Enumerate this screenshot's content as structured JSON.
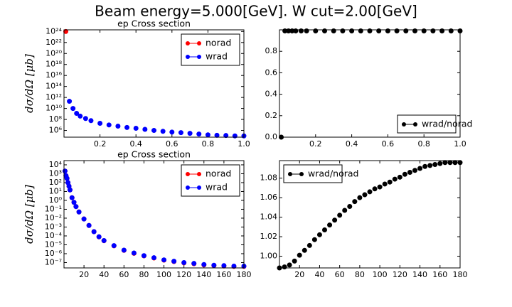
{
  "title": "Beam energy=5.000[GeV]. W cut=2.00[GeV]",
  "chart_data": [
    {
      "type": "scatter",
      "title": "ep Cross section",
      "ylabel": "dσ/dΩ [μb]",
      "log_y": true,
      "legend": "upper right",
      "xlim": [
        0,
        1
      ],
      "ylim": [
        60000,
        2e+24
      ],
      "xticks": [
        0.2,
        0.4,
        0.6,
        0.8,
        {
          "value": 1,
          "label": "1.0"
        }
      ],
      "yticks": [
        {
          "value": 1000000.0,
          "label": "10⁶"
        },
        {
          "value": 100000000.0,
          "label": "10⁸"
        },
        {
          "value": 10000000000.0,
          "label": "10¹⁰"
        },
        {
          "value": 1000000000000.0,
          "label": "10¹²"
        },
        {
          "value": 100000000000000.0,
          "label": "10¹⁴"
        },
        {
          "value": 1e+16,
          "label": "10¹⁶"
        },
        {
          "value": 1e+18,
          "label": "10¹⁸"
        },
        {
          "value": 1e+20,
          "label": "10²⁰"
        },
        {
          "value": 1e+22,
          "label": "10²²"
        },
        {
          "value": 1e+24,
          "label": "10²⁴"
        }
      ],
      "series": [
        {
          "name": "norad",
          "color": "#ff0000",
          "x": [
            0.01
          ],
          "values": [
            1e+24
          ]
        },
        {
          "name": "wrad",
          "color": "#0000ff",
          "x": [
            0.03,
            0.05,
            0.07,
            0.09,
            0.12,
            0.15,
            0.2,
            0.25,
            0.3,
            0.35,
            0.4,
            0.45,
            0.5,
            0.55,
            0.6,
            0.65,
            0.7,
            0.75,
            0.8,
            0.85,
            0.9,
            0.95,
            1.0
          ],
          "values": [
            200000000000.0,
            10000000000.0,
            1300000000.0,
            400000000.0,
            150000000.0,
            60000000.0,
            20000000.0,
            10000000.0,
            6000000.0,
            3500000.0,
            2500000.0,
            1600000.0,
            1000000.0,
            700000.0,
            500000.0,
            400000.0,
            300000.0,
            220000.0,
            160000.0,
            130000.0,
            120000.0,
            100000.0,
            100000.0
          ]
        }
      ]
    },
    {
      "type": "scatter",
      "legend": "lower right",
      "xlim": [
        0,
        1
      ],
      "ylim": [
        0,
        1.0
      ],
      "xticks": [
        0.2,
        0.4,
        0.6,
        0.8,
        {
          "value": 1,
          "label": "1.0"
        }
      ],
      "yticks": [
        {
          "value": 0,
          "label": "0.0"
        },
        0.2,
        0.4,
        0.6,
        0.8
      ],
      "series": [
        {
          "name": "wrad/norad",
          "color": "#000000",
          "x": [
            0.01,
            0.03,
            0.05,
            0.07,
            0.09,
            0.12,
            0.15,
            0.2,
            0.25,
            0.3,
            0.35,
            0.4,
            0.45,
            0.5,
            0.55,
            0.6,
            0.65,
            0.7,
            0.75,
            0.8,
            0.85,
            0.9,
            0.95,
            1.0
          ],
          "values": [
            0,
            0.99,
            0.99,
            0.99,
            0.99,
            0.99,
            0.99,
            0.99,
            0.99,
            0.99,
            0.99,
            0.99,
            0.99,
            0.99,
            0.99,
            0.99,
            0.99,
            0.99,
            0.99,
            0.99,
            0.99,
            0.99,
            0.99,
            0.99
          ]
        }
      ]
    },
    {
      "type": "scatter",
      "title": "ep Cross section",
      "ylabel": "dσ/dΩ [μb]",
      "log_y": true,
      "legend": "upper right",
      "xlim": [
        0,
        180
      ],
      "ylim": [
        2.5e-08,
        30000
      ],
      "xticks": [
        20,
        40,
        60,
        80,
        100,
        120,
        140,
        160,
        180
      ],
      "yticks": [
        {
          "value": 1e-07,
          "label": "10⁻⁷"
        },
        {
          "value": 1e-06,
          "label": "10⁻⁶"
        },
        {
          "value": 1e-05,
          "label": "10⁻⁵"
        },
        {
          "value": 0.0001,
          "label": "10⁻⁴"
        },
        {
          "value": 0.001,
          "label": "10⁻³"
        },
        {
          "value": 0.01,
          "label": "10⁻²"
        },
        {
          "value": 0.1,
          "label": "10⁻¹"
        },
        {
          "value": 1,
          "label": "10⁰"
        },
        {
          "value": 10,
          "label": "10¹"
        },
        {
          "value": 100,
          "label": "10²"
        },
        {
          "value": 1000,
          "label": "10³"
        },
        {
          "value": 10000,
          "label": "10⁴"
        }
      ],
      "series": [
        {
          "name": "norad",
          "color": "#ff0000",
          "x": [
            1,
            2,
            3,
            4,
            5,
            6,
            8,
            10,
            12,
            15,
            20,
            25,
            30,
            35,
            40,
            50,
            60,
            70,
            80,
            90,
            100,
            110,
            120,
            130,
            140,
            150,
            160,
            170,
            180
          ],
          "values": [
            2000.0,
            600.0,
            300.0,
            100.0,
            40.0,
            15.0,
            2,
            0.6,
            0.2,
            0.05,
            0.008,
            0.0015,
            0.0003,
            7.8e-05,
            2.9e-05,
            7.7e-06,
            2.4e-06,
            1.1e-06,
            5.7e-07,
            3.3e-07,
            1.9e-07,
            1.3e-07,
            9.2e-08,
            7.4e-08,
            5.5e-08,
            4.6e-08,
            4.1e-08,
            3.7e-08,
            3.7e-08
          ]
        },
        {
          "name": "wrad",
          "color": "#0000ff",
          "x": [
            1,
            2,
            3,
            4,
            5,
            6,
            8,
            10,
            12,
            15,
            20,
            25,
            30,
            35,
            40,
            50,
            60,
            70,
            80,
            90,
            100,
            110,
            120,
            130,
            140,
            150,
            160,
            170,
            180
          ],
          "values": [
            2000.0,
            600.0,
            300.0,
            100.0,
            40.0,
            15.0,
            2,
            0.6,
            0.2,
            0.05,
            0.008,
            0.0015,
            0.0003,
            8e-05,
            3e-05,
            8e-06,
            2.5e-06,
            1.2e-06,
            6e-07,
            3.5e-07,
            2e-07,
            1.4e-07,
            1e-07,
            8e-08,
            6e-08,
            5e-08,
            4.5e-08,
            4e-08,
            4e-08
          ]
        }
      ]
    },
    {
      "type": "scatter",
      "legend": "upper left",
      "xlim": [
        0,
        180
      ],
      "ylim": [
        0.988,
        1.098
      ],
      "xticks": [
        20,
        40,
        60,
        80,
        100,
        120,
        140,
        160,
        180
      ],
      "yticks": [
        {
          "value": 1,
          "label": "1.00"
        },
        1.02,
        1.04,
        1.06,
        1.08
      ],
      "series": [
        {
          "name": "wrad/norad",
          "color": "#000000",
          "x": [
            0,
            5,
            10,
            15,
            20,
            25,
            30,
            35,
            40,
            45,
            50,
            55,
            60,
            65,
            70,
            75,
            80,
            85,
            90,
            95,
            100,
            105,
            110,
            115,
            120,
            125,
            130,
            135,
            140,
            145,
            150,
            155,
            160,
            165,
            170,
            175,
            180
          ],
          "values": [
            0.988,
            0.989,
            0.991,
            0.995,
            1.001,
            1.006,
            1.011,
            1.017,
            1.022,
            1.027,
            1.032,
            1.037,
            1.042,
            1.047,
            1.051,
            1.056,
            1.06,
            1.063,
            1.066,
            1.069,
            1.071,
            1.074,
            1.076,
            1.079,
            1.081,
            1.084,
            1.086,
            1.088,
            1.09,
            1.092,
            1.093,
            1.094,
            1.095,
            1.096,
            1.096,
            1.096,
            1.096
          ]
        }
      ]
    }
  ]
}
